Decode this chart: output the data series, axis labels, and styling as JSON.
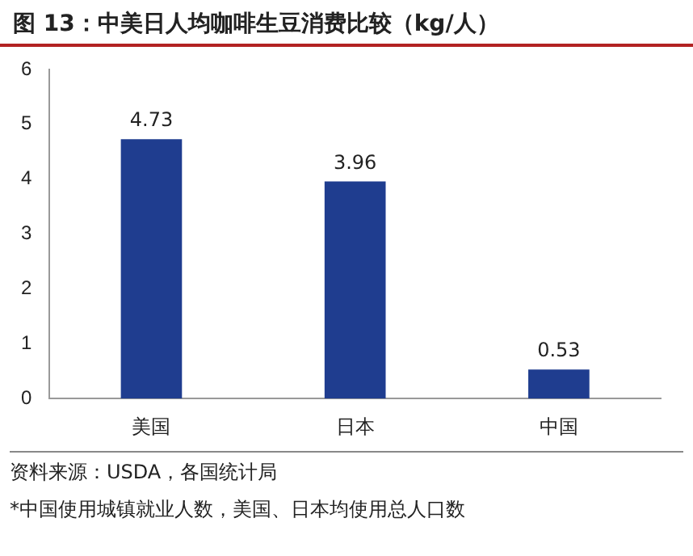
{
  "chart_data": {
    "type": "bar",
    "title": "图 13：中美日人均咖啡生豆消费比较（kg/人）",
    "categories": [
      "美国",
      "日本",
      "中国"
    ],
    "values": [
      4.73,
      3.96,
      0.53
    ],
    "color": "#1f3d8f",
    "ylim": [
      0,
      6
    ],
    "yticks": [
      0,
      1,
      2,
      3,
      4,
      5,
      6
    ],
    "grid": false,
    "legend": false,
    "data_labels": true,
    "annotations": [
      "资料来源：USDA，各国统计局",
      "*中国使用城镇就业人数，美国、日本均使用总人口数"
    ]
  }
}
